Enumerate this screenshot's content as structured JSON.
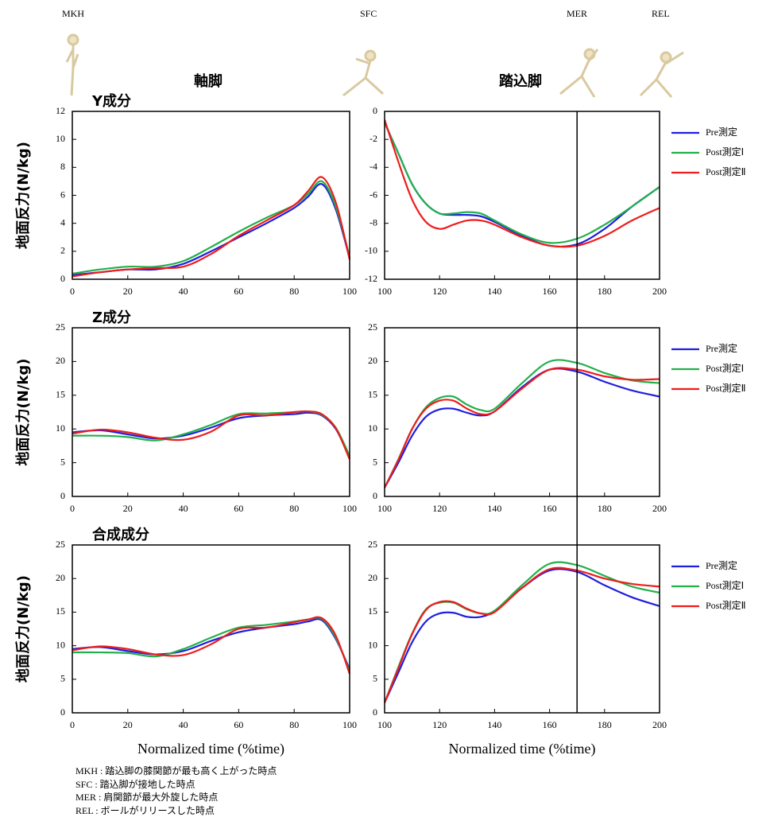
{
  "phases": [
    "MKH",
    "SFC",
    "MER",
    "REL"
  ],
  "columns": [
    "軸脚",
    "踏込脚"
  ],
  "footnotes": [
    "MKH : 踏込脚の膝関節が最も高く上がった時点",
    "SFC : 踏込脚が接地した時点",
    "MER : 肩関節が最大外旋した時点",
    "REL : ボールがリリースした時点"
  ],
  "chart_data": [
    {
      "type": "line",
      "title": "Y成分",
      "y_label": "地面反力(N/kg)",
      "x": [
        0,
        10,
        20,
        30,
        40,
        50,
        60,
        70,
        80,
        85,
        90,
        95,
        100
      ],
      "series": [
        {
          "name": "Pre測定",
          "color": "#1f1fe0",
          "values": [
            0.3,
            0.5,
            0.7,
            0.7,
            1.1,
            2.0,
            3.0,
            4.0,
            5.1,
            5.9,
            6.8,
            5.0,
            1.5
          ]
        },
        {
          "name": "Post測定Ⅰ",
          "color": "#22b04a",
          "values": [
            0.4,
            0.7,
            0.9,
            0.9,
            1.3,
            2.3,
            3.4,
            4.4,
            5.3,
            6.1,
            7.0,
            5.2,
            1.6
          ]
        },
        {
          "name": "Post測定Ⅱ",
          "color": "#ee1c1c",
          "values": [
            0.2,
            0.5,
            0.7,
            0.8,
            0.9,
            1.8,
            3.1,
            4.2,
            5.3,
            6.3,
            7.3,
            5.5,
            1.4
          ]
        }
      ],
      "xlim": [
        0,
        100
      ],
      "xticks": [
        0,
        20,
        40,
        60,
        80,
        100
      ],
      "ylim": [
        0,
        12
      ],
      "yticks": [
        0,
        2,
        4,
        6,
        8,
        10,
        12
      ]
    },
    {
      "type": "line",
      "legend": "right",
      "vline": 170,
      "x": [
        100,
        105,
        110,
        115,
        120,
        125,
        130,
        135,
        140,
        150,
        160,
        170,
        180,
        190,
        200
      ],
      "series": [
        {
          "name": "Pre測定",
          "color": "#1f1fe0",
          "values": [
            -0.8,
            -3.0,
            -5.2,
            -6.6,
            -7.3,
            -7.4,
            -7.4,
            -7.5,
            -7.9,
            -8.9,
            -9.6,
            -9.5,
            -8.4,
            -6.8,
            -5.4
          ]
        },
        {
          "name": "Post測定Ⅰ",
          "color": "#22b04a",
          "values": [
            -0.8,
            -3.0,
            -5.2,
            -6.6,
            -7.3,
            -7.3,
            -7.2,
            -7.3,
            -7.8,
            -8.8,
            -9.4,
            -9.1,
            -8.1,
            -6.8,
            -5.4
          ]
        },
        {
          "name": "Post測定Ⅱ",
          "color": "#ee1c1c",
          "values": [
            -0.6,
            -3.6,
            -6.3,
            -7.9,
            -8.4,
            -8.1,
            -7.8,
            -7.8,
            -8.1,
            -9.0,
            -9.6,
            -9.6,
            -8.9,
            -7.8,
            -6.9
          ]
        }
      ],
      "xlim": [
        100,
        200
      ],
      "xticks": [
        100,
        120,
        140,
        160,
        180,
        200
      ],
      "ylim": [
        -12,
        0
      ],
      "yticks": [
        0,
        -2,
        -4,
        -6,
        -8,
        -10,
        -12
      ]
    },
    {
      "type": "line",
      "title": "Z成分",
      "y_label": "地面反力(N/kg)",
      "x": [
        0,
        10,
        20,
        30,
        40,
        50,
        60,
        70,
        80,
        85,
        90,
        95,
        100
      ],
      "series": [
        {
          "name": "Pre測定",
          "color": "#1f1fe0",
          "values": [
            9.5,
            9.8,
            9.2,
            8.6,
            9.0,
            10.2,
            11.6,
            12.0,
            12.2,
            12.4,
            12.0,
            10.0,
            5.8
          ]
        },
        {
          "name": "Post測定Ⅰ",
          "color": "#22b04a",
          "values": [
            9.0,
            9.0,
            8.8,
            8.3,
            9.2,
            10.6,
            12.2,
            12.3,
            12.5,
            12.6,
            12.1,
            10.2,
            6.0
          ]
        },
        {
          "name": "Post測定Ⅱ",
          "color": "#ee1c1c",
          "values": [
            9.3,
            9.9,
            9.5,
            8.7,
            8.4,
            9.6,
            12.0,
            12.0,
            12.5,
            12.6,
            12.2,
            10.1,
            5.5
          ]
        }
      ],
      "xlim": [
        0,
        100
      ],
      "xticks": [
        0,
        20,
        40,
        60,
        80,
        100
      ],
      "ylim": [
        0,
        25
      ],
      "yticks": [
        0,
        5,
        10,
        15,
        20,
        25
      ]
    },
    {
      "type": "line",
      "legend": "right",
      "x": [
        100,
        105,
        110,
        115,
        120,
        125,
        130,
        135,
        140,
        150,
        160,
        170,
        180,
        190,
        200
      ],
      "series": [
        {
          "name": "Pre測定",
          "color": "#1f1fe0",
          "values": [
            1.3,
            5.0,
            9.0,
            11.8,
            12.9,
            13.0,
            12.4,
            12.0,
            12.6,
            16.2,
            18.8,
            18.5,
            17.0,
            15.7,
            14.8
          ]
        },
        {
          "name": "Post測定Ⅰ",
          "color": "#22b04a",
          "values": [
            1.3,
            5.5,
            10.0,
            13.2,
            14.6,
            14.8,
            13.6,
            12.8,
            13.0,
            16.8,
            20.0,
            19.8,
            18.3,
            17.2,
            16.8
          ]
        },
        {
          "name": "Post測定Ⅱ",
          "color": "#ee1c1c",
          "values": [
            1.3,
            5.4,
            10.0,
            13.0,
            14.2,
            14.2,
            13.0,
            12.2,
            12.6,
            16.0,
            18.8,
            18.8,
            17.8,
            17.3,
            17.4
          ]
        }
      ],
      "xlim": [
        100,
        200
      ],
      "xticks": [
        100,
        120,
        140,
        160,
        180,
        200
      ],
      "ylim": [
        0,
        25
      ],
      "yticks": [
        0,
        5,
        10,
        15,
        20,
        25
      ]
    },
    {
      "type": "line",
      "title": "合成成分",
      "y_label": "地面反力(N/kg)",
      "x_label": "Normalized time (%time)",
      "x": [
        0,
        10,
        20,
        30,
        40,
        50,
        60,
        70,
        80,
        85,
        90,
        95,
        100
      ],
      "series": [
        {
          "name": "Pre測定",
          "color": "#1f1fe0",
          "values": [
            9.5,
            9.8,
            9.2,
            8.7,
            9.2,
            10.7,
            12.0,
            12.7,
            13.2,
            13.6,
            13.8,
            11.0,
            6.5
          ]
        },
        {
          "name": "Post測定Ⅰ",
          "color": "#22b04a",
          "values": [
            9.0,
            9.0,
            8.9,
            8.4,
            9.5,
            11.2,
            12.7,
            13.1,
            13.6,
            13.9,
            14.0,
            11.2,
            6.2
          ]
        },
        {
          "name": "Post測定Ⅱ",
          "color": "#ee1c1c",
          "values": [
            9.3,
            9.9,
            9.5,
            8.7,
            8.6,
            10.2,
            12.5,
            12.7,
            13.5,
            13.9,
            14.1,
            11.5,
            5.8
          ]
        }
      ],
      "xlim": [
        0,
        100
      ],
      "xticks": [
        0,
        20,
        40,
        60,
        80,
        100
      ],
      "ylim": [
        0,
        25
      ],
      "yticks": [
        0,
        5,
        10,
        15,
        20,
        25
      ]
    },
    {
      "type": "line",
      "legend": "right",
      "x_label": "Normalized time (%time)",
      "x": [
        100,
        105,
        110,
        115,
        120,
        125,
        130,
        135,
        140,
        150,
        160,
        170,
        180,
        190,
        200
      ],
      "series": [
        {
          "name": "Pre測定",
          "color": "#1f1fe0",
          "values": [
            1.5,
            6.0,
            10.5,
            13.6,
            14.8,
            14.9,
            14.3,
            14.3,
            15.2,
            18.6,
            21.2,
            21.0,
            19.0,
            17.2,
            15.9
          ]
        },
        {
          "name": "Post測定Ⅰ",
          "color": "#22b04a",
          "values": [
            1.5,
            6.8,
            11.8,
            15.4,
            16.4,
            16.4,
            15.4,
            14.8,
            15.2,
            19.0,
            22.2,
            22.0,
            20.4,
            18.8,
            17.9
          ]
        },
        {
          "name": "Post測定Ⅱ",
          "color": "#ee1c1c",
          "values": [
            1.5,
            6.6,
            11.7,
            15.3,
            16.5,
            16.5,
            15.5,
            14.8,
            15.0,
            18.6,
            21.4,
            21.2,
            20.0,
            19.2,
            18.8
          ]
        }
      ],
      "xlim": [
        100,
        200
      ],
      "xticks": [
        100,
        120,
        140,
        160,
        180,
        200
      ],
      "ylim": [
        0,
        25
      ],
      "yticks": [
        0,
        5,
        10,
        15,
        20,
        25
      ]
    }
  ]
}
